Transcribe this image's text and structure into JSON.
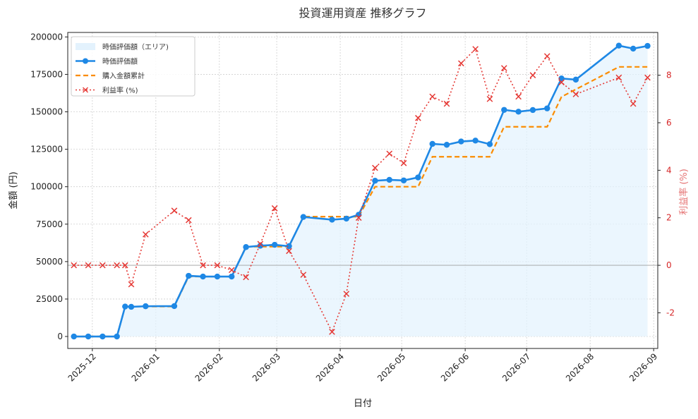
{
  "chart_data": {
    "type": "line",
    "title": "投資運用資産 推移グラフ",
    "xlabel": "日付",
    "ylabel": "金額 (円)",
    "y2label": "利益率 (%)",
    "ylim": [
      -8000,
      203000
    ],
    "y2lim": [
      -3.5,
      9.8
    ],
    "xlim": [
      "2025-11-19",
      "2026-09-03"
    ],
    "grid": true,
    "legend_position": "top-left",
    "x_ticks": [
      "2025-12-01",
      "2026-01-01",
      "2026-02-01",
      "2026-03-01",
      "2026-04-01",
      "2026-05-01",
      "2026-06-01",
      "2026-07-01",
      "2026-08-01",
      "2026-09-01"
    ],
    "x_tick_labels": [
      "2025-12",
      "2026-01",
      "2026-02",
      "2026-03",
      "2026-04",
      "2026-05",
      "2026-06",
      "2026-07",
      "2026-08",
      "2026-09"
    ],
    "y_ticks": [
      0,
      25000,
      50000,
      75000,
      100000,
      125000,
      150000,
      175000,
      200000
    ],
    "y2_ticks": [
      -2,
      0,
      2,
      4,
      6,
      8
    ],
    "colors": {
      "value_line": "#1e88e5",
      "area_fill": "#e3f2fd",
      "purchase_line": "#fb8c00",
      "profit_line": "#e53935",
      "zero_line": "#9e9e9e",
      "right_axis": "#d62728"
    },
    "x": [
      "2025-11-22",
      "2025-11-29",
      "2025-12-06",
      "2025-12-13",
      "2025-12-17",
      "2025-12-20",
      "2025-12-27",
      "2026-01-10",
      "2026-01-17",
      "2026-01-24",
      "2026-01-31",
      "2026-02-07",
      "2026-02-14",
      "2026-02-21",
      "2026-02-28",
      "2026-03-07",
      "2026-03-14",
      "2026-03-28",
      "2026-04-04",
      "2026-04-10",
      "2026-04-18",
      "2026-04-25",
      "2026-05-02",
      "2026-05-09",
      "2026-05-16",
      "2026-05-23",
      "2026-05-30",
      "2026-06-06",
      "2026-06-13",
      "2026-06-20",
      "2026-06-27",
      "2026-07-04",
      "2026-07-11",
      "2026-07-18",
      "2026-07-25",
      "2026-08-15",
      "2026-08-22",
      "2026-08-29"
    ],
    "series": [
      {
        "name": "時価評価額（エリア)",
        "type": "area",
        "values": [
          0,
          0,
          0,
          0,
          20000,
          19800,
          20200,
          20300,
          40500,
          40000,
          40000,
          40000,
          59700,
          60600,
          61200,
          60300,
          79800,
          78000,
          78700,
          81300,
          104000,
          104600,
          104200,
          106200,
          128600,
          128000,
          130200,
          130800,
          128400,
          151300,
          150100,
          151200,
          152300,
          172300,
          171500,
          194200,
          192200,
          194000
        ]
      },
      {
        "name": "時価評価額",
        "type": "line",
        "marker": "circle",
        "values": [
          0,
          0,
          0,
          0,
          20000,
          19800,
          20200,
          20300,
          40500,
          40000,
          40000,
          40000,
          59700,
          60600,
          61200,
          60300,
          79800,
          78000,
          78700,
          81300,
          104000,
          104600,
          104200,
          106200,
          128600,
          128000,
          130200,
          130800,
          128400,
          151300,
          150100,
          151200,
          152300,
          172300,
          171500,
          194200,
          192200,
          194000
        ]
      },
      {
        "name": "購入金額累計",
        "type": "step",
        "dash": "dashed",
        "x": [
          "2025-11-22",
          "2025-12-13",
          "2025-12-17",
          "2026-01-10",
          "2026-01-17",
          "2026-02-07",
          "2026-02-14",
          "2026-03-07",
          "2026-03-14",
          "2026-04-10",
          "2026-04-18",
          "2026-05-09",
          "2026-05-16",
          "2026-06-13",
          "2026-06-20",
          "2026-07-11",
          "2026-07-18",
          "2026-08-15",
          "2026-08-29"
        ],
        "values": [
          0,
          0,
          20000,
          20000,
          40000,
          40000,
          60000,
          60000,
          80000,
          80000,
          100000,
          100000,
          120000,
          120000,
          140000,
          140000,
          160000,
          180000,
          180000
        ]
      },
      {
        "name": "利益率 (%)",
        "type": "line",
        "marker": "x",
        "dash": "dotted",
        "axis": "right",
        "values": [
          0,
          0,
          0,
          0,
          0,
          -0.8,
          1.3,
          2.3,
          1.9,
          0,
          0,
          -0.2,
          -0.5,
          0.9,
          2.4,
          0.6,
          -0.4,
          -2.8,
          -1.2,
          2.0,
          4.1,
          4.7,
          4.3,
          6.2,
          7.1,
          6.8,
          8.5,
          9.1,
          7.0,
          8.3,
          7.1,
          8.0,
          8.8,
          7.7,
          7.2,
          7.9,
          6.8,
          7.9
        ]
      }
    ]
  }
}
